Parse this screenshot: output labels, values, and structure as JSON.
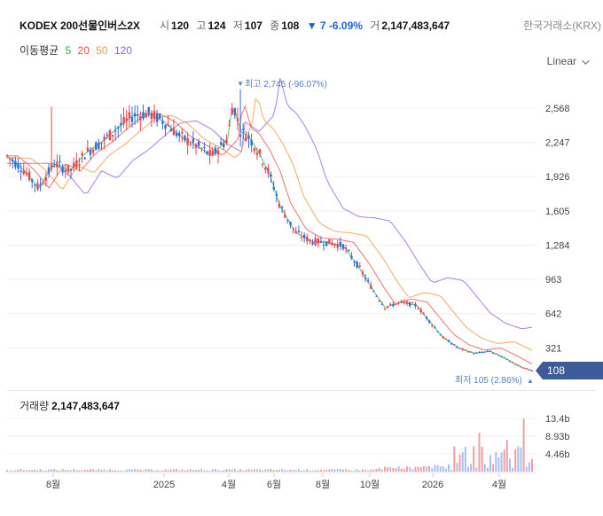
{
  "header": {
    "name": "KODEX 200선물인버스2X",
    "open_label": "시",
    "open": "120",
    "high_label": "고",
    "high": "124",
    "low_label": "저",
    "low": "107",
    "close_label": "종",
    "close": "108",
    "change": "▼ 7 -6.09%",
    "volume_label": "거",
    "volume": "2,147,483,647",
    "exchange": "한국거래소(KRX)"
  },
  "ma_legend": {
    "title": "이동평균",
    "periods": [
      "5",
      "20",
      "50",
      "120"
    ],
    "colors": [
      "#2cb34a",
      "#f0504a",
      "#f2993c",
      "#9b5de5"
    ]
  },
  "scale_selector": {
    "value": "Linear"
  },
  "volume_panel": {
    "title": "거래량",
    "value": "2,147,483,647",
    "y_ticks": [
      "13.4b",
      "8.93b",
      "4.46b"
    ]
  },
  "chart_data": {
    "type": "candlestick",
    "y_ticks": [
      2568,
      2247,
      1926,
      1605,
      1284,
      963,
      642,
      321
    ],
    "ylim": [
      105,
      2745
    ],
    "x_labels": [
      "8월",
      "2025",
      "4월",
      "6월",
      "8월",
      "10월",
      "2026",
      "4월"
    ],
    "annotations": {
      "high": "최고 2,745 (-96.07%)",
      "low": "최저 105 (2.86%)",
      "last_price": "108"
    },
    "price_path": [
      [
        0,
        2120
      ],
      [
        0.03,
        2000
      ],
      [
        0.06,
        1820
      ],
      [
        0.09,
        2050
      ],
      [
        0.12,
        1980
      ],
      [
        0.15,
        2150
      ],
      [
        0.18,
        2250
      ],
      [
        0.21,
        2380
      ],
      [
        0.24,
        2500
      ],
      [
        0.27,
        2520
      ],
      [
        0.3,
        2440
      ],
      [
        0.33,
        2300
      ],
      [
        0.36,
        2220
      ],
      [
        0.39,
        2120
      ],
      [
        0.42,
        2280
      ],
      [
        0.43,
        2620
      ],
      [
        0.445,
        2350
      ],
      [
        0.46,
        2300
      ],
      [
        0.48,
        2150
      ],
      [
        0.5,
        1950
      ],
      [
        0.52,
        1650
      ],
      [
        0.55,
        1400
      ],
      [
        0.58,
        1320
      ],
      [
        0.61,
        1310
      ],
      [
        0.64,
        1280
      ],
      [
        0.67,
        1080
      ],
      [
        0.7,
        840
      ],
      [
        0.72,
        700
      ],
      [
        0.75,
        750
      ],
      [
        0.78,
        720
      ],
      [
        0.8,
        600
      ],
      [
        0.83,
        420
      ],
      [
        0.86,
        320
      ],
      [
        0.89,
        270
      ],
      [
        0.92,
        290
      ],
      [
        0.95,
        220
      ],
      [
        0.98,
        140
      ],
      [
        1.0,
        108
      ]
    ],
    "ma_offsets": {
      "5": 0,
      "20": 110,
      "50": 240,
      "120": 520
    }
  }
}
